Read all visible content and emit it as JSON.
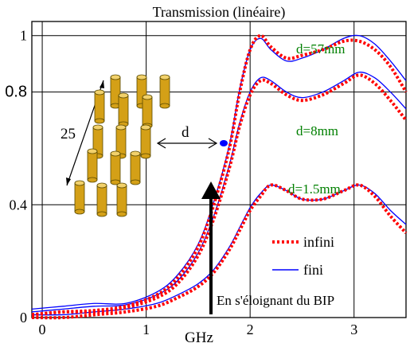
{
  "chart_data": {
    "type": "line",
    "title": "Transmission (linéaire)",
    "xlabel": "GHz",
    "ylabel": "",
    "xlim": [
      -0.1,
      3.5
    ],
    "ylim": [
      0,
      1.05
    ],
    "x_ticks": [
      {
        "value": 0,
        "label": "0"
      },
      {
        "value": 1,
        "label": "1"
      },
      {
        "value": 2,
        "label": "2"
      },
      {
        "value": 3,
        "label": "3"
      }
    ],
    "y_ticks": [
      {
        "value": 0,
        "label": "0"
      },
      {
        "value": 0.4,
        "label": "0.4"
      },
      {
        "value": 0.8,
        "label": "0.8"
      },
      {
        "value": 1,
        "label": "1"
      }
    ],
    "grid": true,
    "legend": {
      "position": "lower-right",
      "entries": [
        {
          "label": "infini",
          "style": "dotted",
          "color": "#ff0000"
        },
        {
          "label": "fini",
          "style": "solid",
          "color": "#0000ff"
        }
      ]
    },
    "series": [
      {
        "name": "infini",
        "curve": "d=57mm",
        "color": "#ff0000",
        "style": "dotted",
        "x": [
          -0.1,
          0.2,
          0.5,
          0.8,
          1.1,
          1.3,
          1.5,
          1.65,
          1.8,
          1.9,
          2.0,
          2.1,
          2.2,
          2.35,
          2.5,
          2.7,
          2.9,
          3.05,
          3.2,
          3.35,
          3.5
        ],
        "y": [
          0.01,
          0.02,
          0.025,
          0.04,
          0.08,
          0.14,
          0.25,
          0.4,
          0.6,
          0.8,
          0.95,
          1.0,
          0.96,
          0.92,
          0.93,
          0.95,
          0.98,
          0.98,
          0.95,
          0.89,
          0.8
        ]
      },
      {
        "name": "infini",
        "curve": "d=8mm",
        "color": "#ff0000",
        "style": "dotted",
        "x": [
          -0.1,
          0.2,
          0.5,
          0.8,
          1.1,
          1.3,
          1.5,
          1.65,
          1.8,
          1.9,
          2.0,
          2.1,
          2.2,
          2.35,
          2.5,
          2.7,
          2.9,
          3.05,
          3.2,
          3.35,
          3.5
        ],
        "y": [
          0.01,
          0.02,
          0.02,
          0.035,
          0.07,
          0.12,
          0.22,
          0.35,
          0.53,
          0.68,
          0.79,
          0.84,
          0.83,
          0.79,
          0.77,
          0.79,
          0.83,
          0.86,
          0.83,
          0.77,
          0.7
        ]
      },
      {
        "name": "infini",
        "curve": "d=1.5mm",
        "color": "#ff0000",
        "style": "dotted",
        "x": [
          -0.1,
          0.2,
          0.5,
          0.8,
          1.1,
          1.3,
          1.5,
          1.65,
          1.8,
          1.9,
          2.0,
          2.1,
          2.2,
          2.35,
          2.5,
          2.7,
          2.9,
          3.05,
          3.2,
          3.35,
          3.5
        ],
        "y": [
          0.0,
          0.0,
          0.01,
          0.02,
          0.04,
          0.07,
          0.11,
          0.16,
          0.24,
          0.31,
          0.38,
          0.43,
          0.47,
          0.45,
          0.42,
          0.42,
          0.45,
          0.47,
          0.43,
          0.36,
          0.3
        ]
      },
      {
        "name": "fini",
        "curve": "d=57mm",
        "color": "#0000ff",
        "style": "solid",
        "x": [
          -0.1,
          0.2,
          0.5,
          0.8,
          1.1,
          1.3,
          1.5,
          1.65,
          1.8,
          1.9,
          2.0,
          2.1,
          2.2,
          2.35,
          2.5,
          2.7,
          2.9,
          3.05,
          3.2,
          3.35,
          3.5
        ],
        "y": [
          0.03,
          0.04,
          0.05,
          0.05,
          0.09,
          0.15,
          0.26,
          0.41,
          0.61,
          0.81,
          0.95,
          0.99,
          0.95,
          0.91,
          0.92,
          0.95,
          0.99,
          1.0,
          0.97,
          0.91,
          0.84
        ]
      },
      {
        "name": "fini",
        "curve": "d=8mm",
        "color": "#0000ff",
        "style": "solid",
        "x": [
          -0.1,
          0.2,
          0.5,
          0.8,
          1.1,
          1.3,
          1.5,
          1.65,
          1.8,
          1.9,
          2.0,
          2.1,
          2.2,
          2.35,
          2.5,
          2.7,
          2.9,
          3.05,
          3.2,
          3.35,
          3.5
        ],
        "y": [
          0.02,
          0.03,
          0.04,
          0.045,
          0.08,
          0.13,
          0.23,
          0.36,
          0.54,
          0.69,
          0.8,
          0.85,
          0.84,
          0.8,
          0.78,
          0.8,
          0.84,
          0.87,
          0.85,
          0.8,
          0.74
        ]
      },
      {
        "name": "fini",
        "curve": "d=1.5mm",
        "color": "#0000ff",
        "style": "solid",
        "x": [
          -0.1,
          0.2,
          0.5,
          0.8,
          1.1,
          1.3,
          1.5,
          1.65,
          1.8,
          1.9,
          2.0,
          2.1,
          2.2,
          2.35,
          2.5,
          2.7,
          2.9,
          3.05,
          3.2,
          3.35,
          3.5
        ],
        "y": [
          0.01,
          0.01,
          0.02,
          0.03,
          0.05,
          0.08,
          0.12,
          0.17,
          0.25,
          0.32,
          0.39,
          0.44,
          0.47,
          0.45,
          0.42,
          0.42,
          0.45,
          0.47,
          0.44,
          0.38,
          0.33
        ]
      }
    ],
    "annotations": [
      {
        "text": "d=57mm",
        "color": "#008000"
      },
      {
        "text": "d=8mm",
        "color": "#008000"
      },
      {
        "text": "d=1.5mm",
        "color": "#008000"
      },
      {
        "text": "En s'éloignant du BIP",
        "color": "#000000"
      }
    ],
    "inset": {
      "dimension_label": "25",
      "distance_label": "d",
      "cylinder_color": "#d4a017",
      "point_color": "#0000ff"
    }
  }
}
